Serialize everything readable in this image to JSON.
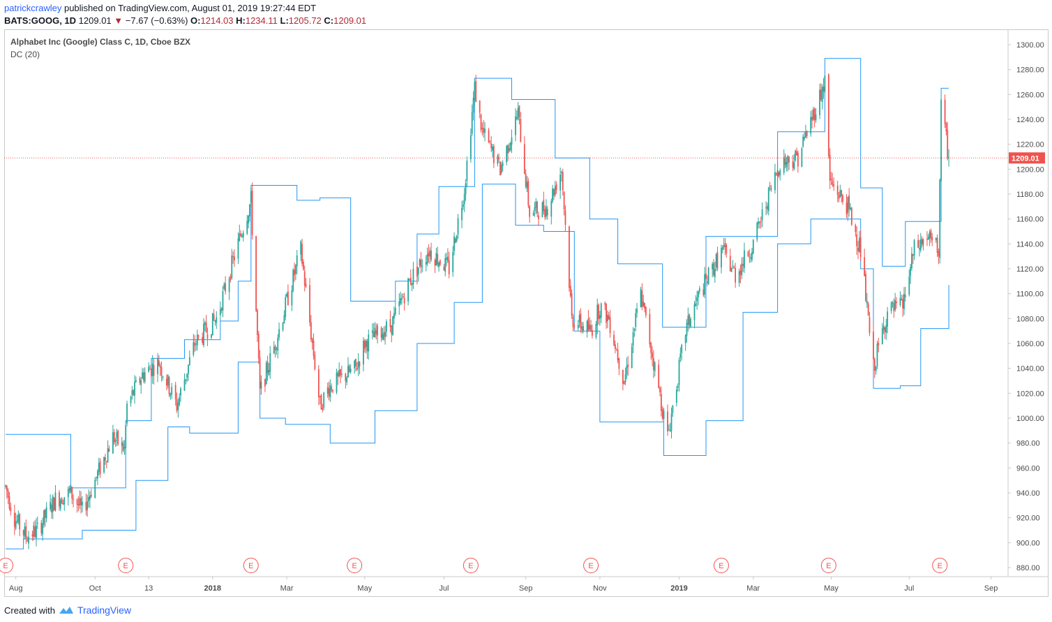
{
  "header": {
    "user": "patrickcrawley",
    "published": " published on TradingView.com, August 01, 2019 19:27:44 EDT",
    "symbol": "BATS:GOOG, 1D",
    "price": "1209.01",
    "change": "−7.67 (−0.63%)",
    "open_label": "O:",
    "open": "1214.03",
    "high_label": "H:",
    "high": "1234.11",
    "low_label": "L:",
    "low": "1205.72",
    "close_label": "C:",
    "close": "1209.01"
  },
  "legend": {
    "title": "Alphabet Inc (Google) Class C, 1D, Cboe BZX",
    "indicator": "DC (20)"
  },
  "footer": {
    "created": "Created with",
    "brand": "TradingView"
  },
  "colors": {
    "up": "#26a69a",
    "down": "#ef5350",
    "channel": "#2196f3",
    "price_line": "#ef5350",
    "earnings": "#ef5350"
  },
  "chart_data": {
    "type": "candlestick",
    "title": "Alphabet Inc (Google) Class C, 1D, Cboe BZX",
    "indicator": "Donchian Channels (20)",
    "ylim": [
      870,
      1310
    ],
    "y_ticks": [
      "880.00",
      "900.00",
      "920.00",
      "940.00",
      "960.00",
      "980.00",
      "1000.00",
      "1020.00",
      "1040.00",
      "1060.00",
      "1080.00",
      "1100.00",
      "1120.00",
      "1140.00",
      "1160.00",
      "1180.00",
      "1200.00",
      "1220.00",
      "1240.00",
      "1260.00",
      "1280.00",
      "1300.00"
    ],
    "x_ticks": [
      {
        "label": "Aug",
        "date": "2017-08-01",
        "bold": false
      },
      {
        "label": "Oct",
        "date": "2017-10-02",
        "bold": false
      },
      {
        "label": "13",
        "date": "2017-11-13",
        "bold": false
      },
      {
        "label": "2018",
        "date": "2018-01-02",
        "bold": true
      },
      {
        "label": "Mar",
        "date": "2018-03-01",
        "bold": false
      },
      {
        "label": "May",
        "date": "2018-05-01",
        "bold": false
      },
      {
        "label": "Jul",
        "date": "2018-07-02",
        "bold": false
      },
      {
        "label": "Sep",
        "date": "2018-09-04",
        "bold": false
      },
      {
        "label": "Nov",
        "date": "2018-11-01",
        "bold": false
      },
      {
        "label": "2019",
        "date": "2019-01-02",
        "bold": true
      },
      {
        "label": "Mar",
        "date": "2019-03-01",
        "bold": false
      },
      {
        "label": "May",
        "date": "2019-05-01",
        "bold": false
      },
      {
        "label": "Jul",
        "date": "2019-07-01",
        "bold": false
      },
      {
        "label": "Sep",
        "date": "2019-09-03",
        "bold": false
      }
    ],
    "last_price": "1209.01",
    "earnings_markers": [
      "2017-07-24",
      "2017-10-26",
      "2018-02-01",
      "2018-04-23",
      "2018-07-23",
      "2018-10-25",
      "2019-02-04",
      "2019-04-29",
      "2019-07-25"
    ],
    "earnings_label": "E",
    "price_path": [
      [
        "2017-07-24",
        945
      ],
      [
        "2017-07-31",
        920
      ],
      [
        "2017-08-09",
        905
      ],
      [
        "2017-08-18",
        910
      ],
      [
        "2017-09-01",
        935
      ],
      [
        "2017-09-13",
        940
      ],
      [
        "2017-09-22",
        925
      ],
      [
        "2017-10-02",
        950
      ],
      [
        "2017-10-16",
        985
      ],
      [
        "2017-10-25",
        975
      ],
      [
        "2017-10-27",
        1010
      ],
      [
        "2017-11-08",
        1035
      ],
      [
        "2017-11-21",
        1045
      ],
      [
        "2017-12-05",
        1010
      ],
      [
        "2017-12-19",
        1060
      ],
      [
        "2018-01-05",
        1080
      ],
      [
        "2018-01-19",
        1130
      ],
      [
        "2018-02-01",
        1175
      ],
      [
        "2018-02-08",
        1020
      ],
      [
        "2018-02-20",
        1060
      ],
      [
        "2018-03-12",
        1135
      ],
      [
        "2018-03-27",
        1010
      ],
      [
        "2018-04-03",
        1025
      ],
      [
        "2018-04-24",
        1040
      ],
      [
        "2018-05-01",
        1060
      ],
      [
        "2018-05-22",
        1075
      ],
      [
        "2018-06-05",
        1110
      ],
      [
        "2018-06-20",
        1135
      ],
      [
        "2018-07-06",
        1120
      ],
      [
        "2018-07-18",
        1185
      ],
      [
        "2018-07-26",
        1265
      ],
      [
        "2018-08-01",
        1230
      ],
      [
        "2018-08-15",
        1200
      ],
      [
        "2018-08-29",
        1245
      ],
      [
        "2018-09-07",
        1165
      ],
      [
        "2018-09-21",
        1170
      ],
      [
        "2018-10-02",
        1200
      ],
      [
        "2018-10-10",
        1080
      ],
      [
        "2018-10-25",
        1070
      ],
      [
        "2018-11-01",
        1090
      ],
      [
        "2018-11-08",
        1080
      ],
      [
        "2018-11-20",
        1030
      ],
      [
        "2018-12-03",
        1100
      ],
      [
        "2018-12-14",
        1040
      ],
      [
        "2018-12-24",
        985
      ],
      [
        "2019-01-07",
        1070
      ],
      [
        "2019-01-18",
        1100
      ],
      [
        "2019-02-05",
        1135
      ],
      [
        "2019-02-15",
        1115
      ],
      [
        "2019-03-01",
        1140
      ],
      [
        "2019-03-15",
        1185
      ],
      [
        "2019-03-22",
        1205
      ],
      [
        "2019-04-05",
        1210
      ],
      [
        "2019-04-26",
        1270
      ],
      [
        "2019-04-30",
        1190
      ],
      [
        "2019-05-14",
        1170
      ],
      [
        "2019-05-24",
        1135
      ],
      [
        "2019-06-03",
        1040
      ],
      [
        "2019-06-14",
        1085
      ],
      [
        "2019-06-26",
        1090
      ],
      [
        "2019-07-05",
        1135
      ],
      [
        "2019-07-15",
        1145
      ],
      [
        "2019-07-24",
        1135
      ],
      [
        "2019-07-26",
        1250
      ],
      [
        "2019-08-01",
        1209
      ]
    ],
    "donchian_upper": [
      [
        "2017-07-24",
        987
      ],
      [
        "2017-08-17",
        987
      ],
      [
        "2017-09-13",
        944
      ],
      [
        "2017-10-26",
        998
      ],
      [
        "2017-11-15",
        1048
      ],
      [
        "2017-12-11",
        1063
      ],
      [
        "2018-01-08",
        1078
      ],
      [
        "2018-01-22",
        1110
      ],
      [
        "2018-02-01",
        1187
      ],
      [
        "2018-03-09",
        1175
      ],
      [
        "2018-03-27",
        1177
      ],
      [
        "2018-04-20",
        1094
      ],
      [
        "2018-05-25",
        1110
      ],
      [
        "2018-06-11",
        1148
      ],
      [
        "2018-06-28",
        1186
      ],
      [
        "2018-07-26",
        1273
      ],
      [
        "2018-08-24",
        1256
      ],
      [
        "2018-09-27",
        1209
      ],
      [
        "2018-10-24",
        1160
      ],
      [
        "2018-11-15",
        1124
      ],
      [
        "2018-12-20",
        1073
      ],
      [
        "2019-01-23",
        1146
      ],
      [
        "2019-03-20",
        1230
      ],
      [
        "2019-04-26",
        1289
      ],
      [
        "2019-05-24",
        1185
      ],
      [
        "2019-06-10",
        1122
      ],
      [
        "2019-06-28",
        1158
      ],
      [
        "2019-07-26",
        1265
      ],
      [
        "2019-08-01",
        1265
      ]
    ],
    "donchian_lower": [
      [
        "2017-07-24",
        895
      ],
      [
        "2017-08-07",
        903
      ],
      [
        "2017-09-22",
        910
      ],
      [
        "2017-11-03",
        950
      ],
      [
        "2017-11-28",
        993
      ],
      [
        "2017-12-15",
        988
      ],
      [
        "2018-01-22",
        1045
      ],
      [
        "2018-02-08",
        1000
      ],
      [
        "2018-02-28",
        995
      ],
      [
        "2018-04-04",
        980
      ],
      [
        "2018-05-09",
        1006
      ],
      [
        "2018-06-11",
        1060
      ],
      [
        "2018-07-10",
        1093
      ],
      [
        "2018-08-01",
        1188
      ],
      [
        "2018-08-27",
        1155
      ],
      [
        "2018-09-18",
        1150
      ],
      [
        "2018-10-12",
        1070
      ],
      [
        "2018-11-01",
        997
      ],
      [
        "2018-12-21",
        970
      ],
      [
        "2019-01-23",
        998
      ],
      [
        "2019-02-21",
        1085
      ],
      [
        "2019-03-20",
        1140
      ],
      [
        "2019-04-15",
        1160
      ],
      [
        "2019-05-01",
        1160
      ],
      [
        "2019-05-24",
        1120
      ],
      [
        "2019-06-03",
        1024
      ],
      [
        "2019-06-24",
        1026
      ],
      [
        "2019-07-10",
        1072
      ],
      [
        "2019-08-01",
        1107
      ]
    ]
  }
}
